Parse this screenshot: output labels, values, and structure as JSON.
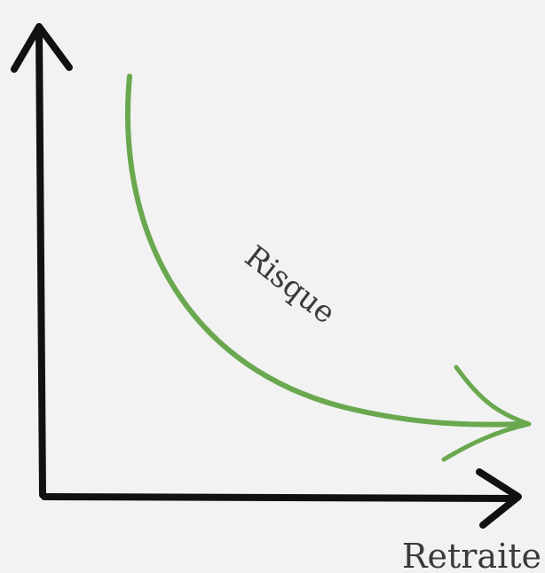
{
  "curve_label": "Risque",
  "x_axis_label": "Retraite"
}
